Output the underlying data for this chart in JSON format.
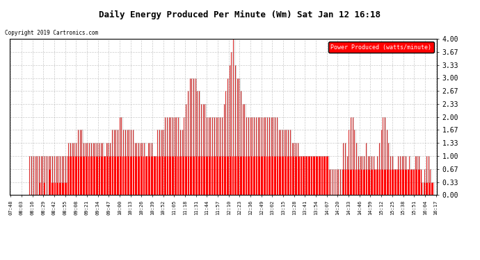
{
  "title": "Daily Energy Produced Per Minute (Wm) Sat Jan 12 16:18",
  "copyright": "Copyright 2019 Cartronics.com",
  "legend_label": "Power Produced (watts/minute)",
  "ylabel_values": [
    0.0,
    0.33,
    0.67,
    1.0,
    1.33,
    1.67,
    2.0,
    2.33,
    2.67,
    3.0,
    3.33,
    3.67,
    4.0
  ],
  "bar_color": "#FF0000",
  "line_color": "#888888",
  "bg_color": "#FFFFFF",
  "grid_color": "#BBBBBB",
  "title_color": "#000000",
  "legend_bg": "#FF0000",
  "legend_text_color": "#FFFFFF",
  "x_tick_labels": [
    "07:48",
    "08:03",
    "08:16",
    "08:29",
    "08:42",
    "08:55",
    "09:08",
    "09:21",
    "09:34",
    "09:47",
    "10:00",
    "10:13",
    "10:26",
    "10:39",
    "10:52",
    "11:05",
    "11:18",
    "11:31",
    "11:44",
    "11:57",
    "12:10",
    "12:23",
    "12:36",
    "12:49",
    "13:02",
    "13:15",
    "13:28",
    "13:41",
    "13:54",
    "14:07",
    "14:20",
    "14:33",
    "14:46",
    "14:59",
    "15:12",
    "15:25",
    "15:38",
    "15:51",
    "16:04",
    "16:17"
  ],
  "data": [
    0.0,
    0.0,
    0.0,
    0.0,
    0.0,
    0.0,
    0.0,
    0.0,
    0.0,
    0.0,
    0.0,
    0.0,
    0.0,
    0.0,
    0.0,
    0.0,
    0.0,
    0.0,
    0.0,
    0.0,
    1.0,
    0.0,
    1.0,
    0.0,
    1.0,
    0.0,
    1.0,
    0.0,
    1.0,
    0.0,
    1.0,
    0.33,
    1.0,
    0.0,
    1.0,
    0.33,
    1.0,
    0.0,
    1.0,
    0.0,
    1.0,
    0.67,
    1.0,
    0.33,
    1.0,
    0.33,
    1.0,
    0.33,
    1.0,
    0.33,
    1.0,
    0.33,
    1.0,
    0.33,
    1.0,
    0.33,
    1.0,
    0.33,
    1.0,
    0.33,
    1.0,
    1.33,
    1.0,
    1.33,
    1.0,
    1.33,
    1.0,
    1.33,
    1.0,
    1.33,
    1.0,
    1.67,
    1.0,
    1.67,
    1.0,
    1.67,
    1.0,
    1.33,
    1.0,
    1.33,
    1.0,
    1.33,
    1.0,
    1.33,
    1.0,
    1.33,
    1.0,
    1.33,
    1.0,
    1.33,
    1.0,
    1.33,
    1.0,
    1.33,
    1.0,
    1.33,
    1.0,
    1.33,
    1.0,
    1.0,
    1.0,
    1.33,
    1.0,
    1.33,
    1.0,
    1.33,
    1.0,
    1.67,
    1.0,
    1.67,
    1.0,
    1.67,
    1.0,
    1.67,
    1.0,
    2.0,
    1.0,
    2.0,
    1.0,
    1.67,
    1.0,
    1.67,
    1.0,
    1.67,
    1.0,
    1.67,
    1.0,
    1.67,
    1.0,
    1.67,
    1.0,
    1.33,
    1.0,
    1.33,
    1.0,
    1.33,
    1.0,
    1.33,
    1.0,
    1.33,
    1.0,
    1.33,
    1.0,
    1.0,
    1.0,
    1.33,
    1.0,
    1.33,
    1.0,
    1.33,
    1.0,
    1.0,
    1.0,
    1.0,
    1.0,
    1.67,
    1.0,
    1.67,
    1.0,
    1.67,
    1.0,
    1.67,
    1.0,
    2.0,
    1.0,
    2.0,
    1.0,
    2.0,
    1.0,
    2.0,
    1.0,
    2.0,
    1.0,
    2.0,
    1.0,
    2.0,
    1.0,
    2.0,
    1.0,
    1.67,
    1.0,
    1.67,
    1.0,
    2.0,
    1.0,
    2.33,
    1.0,
    2.67,
    1.0,
    3.0,
    1.0,
    3.0,
    1.0,
    3.0,
    1.0,
    3.0,
    1.0,
    2.67,
    1.0,
    2.67,
    1.0,
    2.33,
    1.0,
    2.33,
    1.0,
    2.33,
    1.0,
    2.0,
    1.0,
    2.0,
    1.0,
    2.0,
    1.0,
    2.0,
    1.0,
    2.0,
    1.0,
    2.0,
    1.0,
    2.0,
    1.0,
    2.0,
    1.0,
    2.0,
    1.0,
    2.33,
    1.0,
    2.67,
    1.0,
    3.0,
    1.0,
    3.33,
    1.0,
    3.67,
    1.0,
    4.0,
    1.0,
    3.33,
    1.0,
    3.0,
    1.0,
    3.0,
    1.0,
    2.67,
    1.0,
    2.33,
    1.0,
    2.33,
    1.0,
    2.0,
    1.0,
    2.0,
    1.0,
    2.0,
    1.0,
    2.0,
    1.0,
    2.0,
    1.0,
    2.0,
    1.0,
    2.0,
    1.0,
    2.0,
    1.0,
    2.0,
    1.0,
    2.0,
    1.0,
    2.0,
    1.0,
    2.0,
    1.0,
    2.0,
    1.0,
    2.0,
    1.0,
    2.0,
    1.0,
    2.0,
    1.0,
    2.0,
    1.0,
    1.67,
    1.0,
    1.67,
    1.0,
    1.67,
    1.0,
    1.67,
    1.0,
    1.67,
    1.0,
    1.67,
    1.0,
    1.67,
    1.0,
    1.33,
    1.0,
    1.33,
    1.0,
    1.33,
    1.0,
    1.33,
    1.0,
    1.0,
    1.0,
    1.0,
    1.0,
    1.0,
    1.0,
    1.0,
    1.0,
    1.0,
    1.0,
    1.0,
    1.0,
    1.0,
    1.0,
    1.0,
    1.0,
    1.0,
    1.0,
    1.0,
    1.0,
    1.0,
    1.0,
    1.0,
    1.0,
    1.0,
    1.0,
    1.0,
    1.0,
    1.0,
    1.0,
    1.0,
    0.67,
    0.0,
    0.67,
    0.0,
    0.67,
    0.0,
    0.67,
    0.0,
    0.67,
    0.0,
    0.67,
    0.0,
    0.67,
    0.0,
    0.67,
    1.33,
    0.67,
    1.33,
    0.67,
    1.0,
    0.67,
    1.67,
    0.67,
    2.0,
    0.67,
    2.0,
    0.67,
    1.67,
    0.67,
    1.33,
    0.67,
    1.0,
    0.67,
    1.0,
    0.67,
    1.0,
    0.67,
    1.0,
    0.67,
    1.33,
    0.67,
    1.0,
    0.67,
    1.0,
    0.67,
    1.0,
    0.67,
    1.0,
    0.67,
    0.67,
    0.67,
    1.0,
    0.67,
    1.33,
    0.67,
    1.67,
    0.67,
    2.0,
    0.67,
    2.0,
    0.67,
    1.67,
    0.67,
    1.33,
    0.67,
    1.0,
    0.67,
    1.0,
    0.67,
    0.67,
    0.67,
    0.67,
    0.67,
    1.0,
    0.67,
    1.0,
    0.67,
    1.0,
    0.67,
    1.0,
    0.67,
    1.0,
    0.67,
    0.67,
    0.67,
    1.0,
    0.67,
    0.67,
    0.67,
    0.67,
    0.67,
    1.0,
    0.67,
    1.0,
    0.67,
    1.0,
    0.67,
    0.67,
    0.33,
    0.0,
    0.33,
    0.67,
    0.33,
    1.0,
    0.33,
    1.0,
    0.33,
    0.67,
    0.33,
    0.33,
    0.33,
    0.0,
    0.0,
    0.0
  ]
}
